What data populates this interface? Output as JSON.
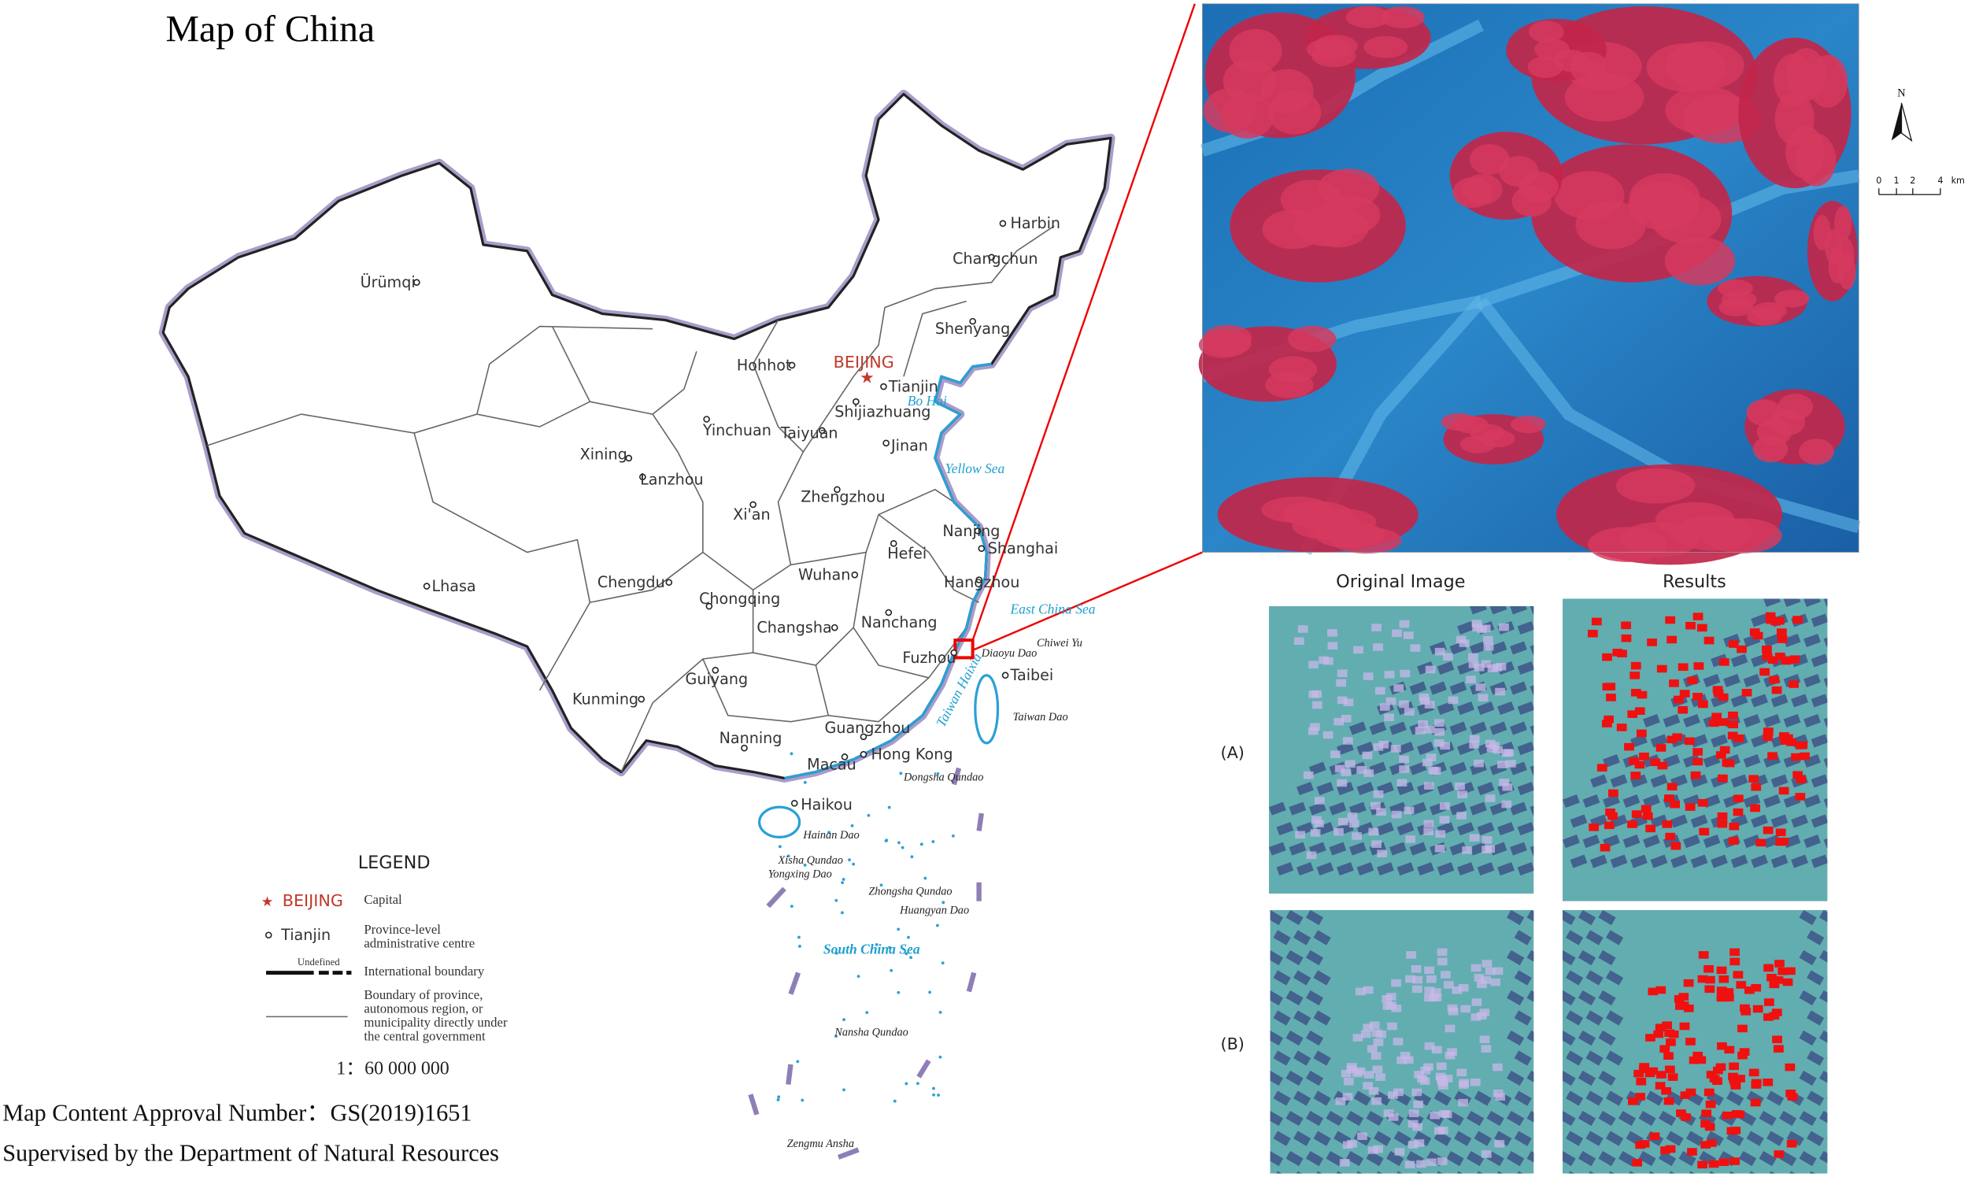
{
  "title": "Map of China",
  "capital": "BEIJING",
  "cities": [
    "Harbin",
    "Changchun",
    "Ürümqi",
    "Shenyang",
    "Hohhot",
    "Tianjin",
    "Shijiazhuang",
    "Yinchuan",
    "Taiyuan",
    "Jinan",
    "Xining",
    "Lanzhou",
    "Xi'an",
    "Zhengzhou",
    "Nanjing",
    "Hefei",
    "Shanghai",
    "Lhasa",
    "Chengdu",
    "Chongqing",
    "Wuhan",
    "Hangzhou",
    "Changsha",
    "Nanchang",
    "Fuzhou",
    "Taibei",
    "Kunming",
    "Guiyang",
    "Nanning",
    "Guangzhou",
    "Macau",
    "Hong Kong",
    "Haikou"
  ],
  "seas": [
    "Bo Hai",
    "Yellow Sea",
    "East China Sea",
    "Taiwan Haixia",
    "South China Sea"
  ],
  "islands": [
    "Diaoyu Dao",
    "Chiwei Yu",
    "Taiwan Dao",
    "Dongsha Qundao",
    "Hainan Dao",
    "Xisha Qundao",
    "Yongxing Dao",
    "Zhongsha Qundao",
    "Huangyan Dao",
    "Nansha Qundao",
    "Zengmu Ansha"
  ],
  "legend": {
    "heading": "LEGEND",
    "capital_sample": "BEIJING",
    "capital": "Capital",
    "centre_sample": "Tianjin",
    "centre": [
      "Province-level",
      "administrative centre"
    ],
    "undefined": "Undefined",
    "international": "International boundary",
    "province": [
      "Boundary of province,",
      "autonomous region, or",
      "municipality directly under",
      "the central government"
    ]
  },
  "scale": "1：60 000 000",
  "footer": [
    "Map Content Approval Number：GS(2019)1651",
    "Supervised by the Department of Natural Resources"
  ],
  "inset": {
    "north": "N",
    "scale_labels": [
      "0",
      "1",
      "2",
      "4",
      "km"
    ]
  },
  "panels": {
    "columns": [
      "Original Image",
      "Results"
    ],
    "rows": [
      "(A)",
      "(B)"
    ]
  }
}
